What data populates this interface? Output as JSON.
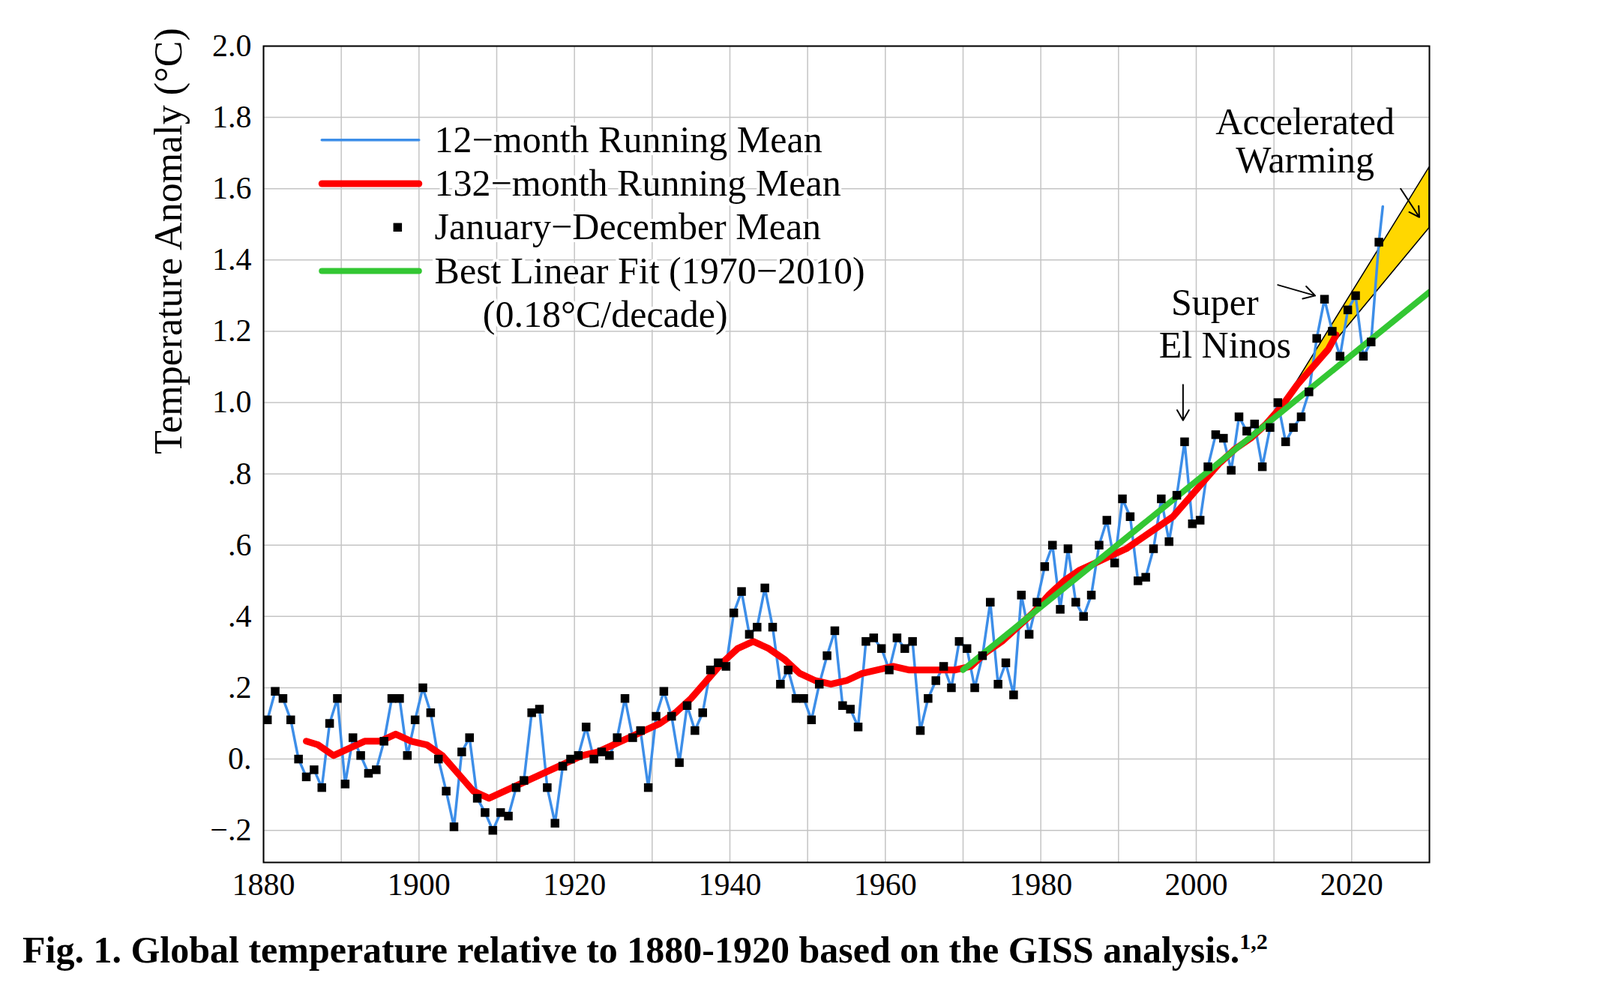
{
  "chart_data": {
    "type": "line",
    "title": "Fig. 1. Global temperature relative to 1880-1920 based on the GISS analysis.",
    "title_superscript": "1,2",
    "y_label": "Temperature Anomaly (°C)",
    "xlim": [
      1880,
      2030
    ],
    "xticks": [
      1880,
      1900,
      1920,
      1940,
      1960,
      1980,
      2000,
      2020
    ],
    "ylim": [
      -0.29,
      2.0
    ],
    "yticks": [
      {
        "value": -0.2,
        "label": "−.2"
      },
      {
        "value": 0,
        "label": "0."
      },
      {
        "value": 0.2,
        "label": ".2"
      },
      {
        "value": 0.4,
        "label": ".4"
      },
      {
        "value": 0.6,
        "label": ".6"
      },
      {
        "value": 0.8,
        "label": ".8"
      },
      {
        "value": 1.0,
        "label": "1.0"
      },
      1.2,
      1.4,
      1.6,
      1.8,
      {
        "value": 2.0,
        "label": "2.0"
      }
    ],
    "grid": true,
    "legend": "upper left",
    "series": [
      {
        "name": "12−month Running Mean",
        "type": "line",
        "color": "#3d8ee8",
        "x": [
          1880.5,
          1881.5,
          1882.5,
          1883.5,
          1884.5,
          1885.5,
          1886.5,
          1887.5,
          1888.5,
          1889.5,
          1890.5,
          1891.5,
          1892.5,
          1893.5,
          1894.5,
          1895.5,
          1896.5,
          1897.5,
          1898.5,
          1899.5,
          1900.5,
          1901.5,
          1902.5,
          1903.5,
          1904.5,
          1905.5,
          1906.5,
          1907.5,
          1908.5,
          1909.5,
          1910.5,
          1911.5,
          1912.5,
          1913.5,
          1914.5,
          1915.5,
          1916.5,
          1917.5,
          1918.5,
          1919.5,
          1920.5,
          1921.5,
          1922.5,
          1923.5,
          1924.5,
          1925.5,
          1926.5,
          1927.5,
          1928.5,
          1929.5,
          1930.5,
          1931.5,
          1932.5,
          1933.5,
          1934.5,
          1935.5,
          1936.5,
          1937.5,
          1938.5,
          1939.5,
          1940.5,
          1941.5,
          1942.5,
          1943.5,
          1944.5,
          1945.5,
          1946.5,
          1947.5,
          1948.5,
          1949.5,
          1950.5,
          1951.5,
          1952.5,
          1953.5,
          1954.5,
          1955.5,
          1956.5,
          1957.5,
          1958.5,
          1959.5,
          1960.5,
          1961.5,
          1962.5,
          1963.5,
          1964.5,
          1965.5,
          1966.5,
          1967.5,
          1968.5,
          1969.5,
          1970.5,
          1971.5,
          1972.5,
          1973.5,
          1974.5,
          1975.5,
          1976.5,
          1977.5,
          1978.5,
          1979.5,
          1980.5,
          1981.5,
          1982.5,
          1983.5,
          1984.5,
          1985.5,
          1986.5,
          1987.5,
          1988.5,
          1989.5,
          1990.5,
          1991.5,
          1992.5,
          1993.5,
          1994.5,
          1995.5,
          1996.5,
          1997.5,
          1998.5,
          1999.5,
          2000.5,
          2001.5,
          2002.5,
          2003.5,
          2004.5,
          2005.5,
          2006.5,
          2007.5,
          2008.5,
          2009.5,
          2010.5,
          2011.5,
          2012.5,
          2013.5,
          2014.5,
          2015.5,
          2016.5,
          2017.5,
          2018.5,
          2019.5,
          2020.5,
          2021.5,
          2022.5,
          2023.5,
          2024.0
        ],
        "values": [
          0.11,
          0.19,
          0.17,
          0.11,
          0.0,
          -0.05,
          -0.03,
          -0.08,
          0.1,
          0.17,
          -0.07,
          0.06,
          0.01,
          -0.04,
          -0.03,
          0.05,
          0.17,
          0.17,
          0.01,
          0.11,
          0.2,
          0.13,
          0.0,
          -0.09,
          -0.19,
          0.02,
          0.06,
          -0.11,
          -0.15,
          -0.2,
          -0.15,
          -0.16,
          -0.08,
          -0.06,
          0.13,
          0.14,
          -0.08,
          -0.18,
          -0.02,
          0.0,
          0.01,
          0.09,
          0.0,
          0.02,
          0.01,
          0.06,
          0.17,
          0.06,
          0.08,
          -0.08,
          0.12,
          0.19,
          0.12,
          -0.01,
          0.15,
          0.08,
          0.13,
          0.25,
          0.27,
          0.26,
          0.41,
          0.47,
          0.35,
          0.37,
          0.48,
          0.37,
          0.21,
          0.25,
          0.17,
          0.17,
          0.11,
          0.21,
          0.29,
          0.36,
          0.15,
          0.14,
          0.09,
          0.33,
          0.34,
          0.31,
          0.25,
          0.34,
          0.31,
          0.33,
          0.08,
          0.17,
          0.22,
          0.26,
          0.2,
          0.33,
          0.31,
          0.2,
          0.29,
          0.44,
          0.21,
          0.27,
          0.18,
          0.46,
          0.35,
          0.44,
          0.54,
          0.6,
          0.42,
          0.59,
          0.44,
          0.4,
          0.46,
          0.6,
          0.67,
          0.55,
          0.73,
          0.68,
          0.5,
          0.51,
          0.59,
          0.73,
          0.61,
          0.74,
          0.89,
          0.66,
          0.67,
          0.82,
          0.91,
          0.9,
          0.81,
          0.96,
          0.92,
          0.94,
          0.82,
          0.93,
          1.0,
          0.89,
          0.93,
          0.96,
          1.03,
          1.18,
          1.29,
          1.2,
          1.13,
          1.26,
          1.3,
          1.13,
          1.17,
          1.45,
          1.55
        ]
      },
      {
        "name": "132−month Running Mean",
        "type": "line",
        "color": "#ff0000",
        "x": [
          1885.5,
          1887,
          1889,
          1891,
          1893,
          1895,
          1897,
          1899,
          1901,
          1903,
          1905,
          1907,
          1909,
          1911,
          1913,
          1915,
          1917,
          1919,
          1921,
          1923,
          1925,
          1927,
          1929,
          1931,
          1933,
          1935,
          1937,
          1939,
          1941,
          1943,
          1945,
          1947,
          1949,
          1951,
          1953,
          1955,
          1957,
          1959,
          1961,
          1963,
          1965,
          1967,
          1969,
          1971,
          1973,
          1975,
          1977,
          1979,
          1981,
          1983,
          1985,
          1987,
          1989,
          1991,
          1993,
          1995,
          1997,
          1999,
          2001,
          2003,
          2005,
          2007,
          2009,
          2011,
          2013,
          2015,
          2017,
          2018
        ],
        "values": [
          0.05,
          0.04,
          0.01,
          0.03,
          0.05,
          0.05,
          0.07,
          0.05,
          0.04,
          0.01,
          -0.04,
          -0.09,
          -0.11,
          -0.09,
          -0.07,
          -0.05,
          -0.03,
          -0.01,
          0.01,
          0.02,
          0.04,
          0.06,
          0.08,
          0.1,
          0.13,
          0.17,
          0.22,
          0.27,
          0.31,
          0.33,
          0.31,
          0.28,
          0.24,
          0.22,
          0.21,
          0.22,
          0.24,
          0.25,
          0.26,
          0.25,
          0.25,
          0.25,
          0.25,
          0.26,
          0.3,
          0.33,
          0.37,
          0.41,
          0.46,
          0.5,
          0.53,
          0.55,
          0.57,
          0.59,
          0.62,
          0.65,
          0.68,
          0.73,
          0.78,
          0.83,
          0.87,
          0.9,
          0.94,
          0.99,
          1.05,
          1.1,
          1.15,
          1.19
        ]
      },
      {
        "name": "January−December Mean",
        "type": "scatter",
        "marker": "square",
        "color": "#000000",
        "x": [
          1880.5,
          1881.5,
          1882.5,
          1883.5,
          1884.5,
          1885.5,
          1886.5,
          1887.5,
          1888.5,
          1889.5,
          1890.5,
          1891.5,
          1892.5,
          1893.5,
          1894.5,
          1895.5,
          1896.5,
          1897.5,
          1898.5,
          1899.5,
          1900.5,
          1901.5,
          1902.5,
          1903.5,
          1904.5,
          1905.5,
          1906.5,
          1907.5,
          1908.5,
          1909.5,
          1910.5,
          1911.5,
          1912.5,
          1913.5,
          1914.5,
          1915.5,
          1916.5,
          1917.5,
          1918.5,
          1919.5,
          1920.5,
          1921.5,
          1922.5,
          1923.5,
          1924.5,
          1925.5,
          1926.5,
          1927.5,
          1928.5,
          1929.5,
          1930.5,
          1931.5,
          1932.5,
          1933.5,
          1934.5,
          1935.5,
          1936.5,
          1937.5,
          1938.5,
          1939.5,
          1940.5,
          1941.5,
          1942.5,
          1943.5,
          1944.5,
          1945.5,
          1946.5,
          1947.5,
          1948.5,
          1949.5,
          1950.5,
          1951.5,
          1952.5,
          1953.5,
          1954.5,
          1955.5,
          1956.5,
          1957.5,
          1958.5,
          1959.5,
          1960.5,
          1961.5,
          1962.5,
          1963.5,
          1964.5,
          1965.5,
          1966.5,
          1967.5,
          1968.5,
          1969.5,
          1970.5,
          1971.5,
          1972.5,
          1973.5,
          1974.5,
          1975.5,
          1976.5,
          1977.5,
          1978.5,
          1979.5,
          1980.5,
          1981.5,
          1982.5,
          1983.5,
          1984.5,
          1985.5,
          1986.5,
          1987.5,
          1988.5,
          1989.5,
          1990.5,
          1991.5,
          1992.5,
          1993.5,
          1994.5,
          1995.5,
          1996.5,
          1997.5,
          1998.5,
          1999.5,
          2000.5,
          2001.5,
          2002.5,
          2003.5,
          2004.5,
          2005.5,
          2006.5,
          2007.5,
          2008.5,
          2009.5,
          2010.5,
          2011.5,
          2012.5,
          2013.5,
          2014.5,
          2015.5,
          2016.5,
          2017.5,
          2018.5,
          2019.5,
          2020.5,
          2021.5,
          2022.5,
          2023.5
        ],
        "values": [
          0.11,
          0.19,
          0.17,
          0.11,
          0.0,
          -0.05,
          -0.03,
          -0.08,
          0.1,
          0.17,
          -0.07,
          0.06,
          0.01,
          -0.04,
          -0.03,
          0.05,
          0.17,
          0.17,
          0.01,
          0.11,
          0.2,
          0.13,
          0.0,
          -0.09,
          -0.19,
          0.02,
          0.06,
          -0.11,
          -0.15,
          -0.2,
          -0.15,
          -0.16,
          -0.08,
          -0.06,
          0.13,
          0.14,
          -0.08,
          -0.18,
          -0.02,
          0.0,
          0.01,
          0.09,
          0.0,
          0.02,
          0.01,
          0.06,
          0.17,
          0.06,
          0.08,
          -0.08,
          0.12,
          0.19,
          0.12,
          -0.01,
          0.15,
          0.08,
          0.13,
          0.25,
          0.27,
          0.26,
          0.41,
          0.47,
          0.35,
          0.37,
          0.48,
          0.37,
          0.21,
          0.25,
          0.17,
          0.17,
          0.11,
          0.21,
          0.29,
          0.36,
          0.15,
          0.14,
          0.09,
          0.33,
          0.34,
          0.31,
          0.25,
          0.34,
          0.31,
          0.33,
          0.08,
          0.17,
          0.22,
          0.26,
          0.2,
          0.33,
          0.31,
          0.2,
          0.29,
          0.44,
          0.21,
          0.27,
          0.18,
          0.46,
          0.35,
          0.44,
          0.54,
          0.6,
          0.42,
          0.59,
          0.44,
          0.4,
          0.46,
          0.6,
          0.67,
          0.55,
          0.73,
          0.68,
          0.5,
          0.51,
          0.59,
          0.73,
          0.61,
          0.74,
          0.89,
          0.66,
          0.67,
          0.82,
          0.91,
          0.9,
          0.81,
          0.96,
          0.92,
          0.94,
          0.82,
          0.93,
          1.0,
          0.89,
          0.93,
          0.96,
          1.03,
          1.18,
          1.29,
          1.2,
          1.13,
          1.26,
          1.3,
          1.13,
          1.17,
          1.45
        ]
      },
      {
        "name": "Best Linear Fit (1970−2010)",
        "legend_note": "(0.18°C/decade)",
        "type": "line",
        "color": "#33c733",
        "x": [
          1970,
          2030
        ],
        "values": [
          0.25,
          1.31
        ]
      }
    ],
    "band": {
      "type": "area",
      "color": "#ffd700",
      "x": [
        2011,
        2030
      ],
      "low": [
        0.99,
        1.49
      ],
      "high": [
        0.99,
        1.66
      ]
    },
    "annotations": [
      {
        "text": [
          "Accelerated",
          "Warming"
        ]
      },
      {
        "text": [
          "Super",
          "El Ninos"
        ]
      }
    ]
  }
}
